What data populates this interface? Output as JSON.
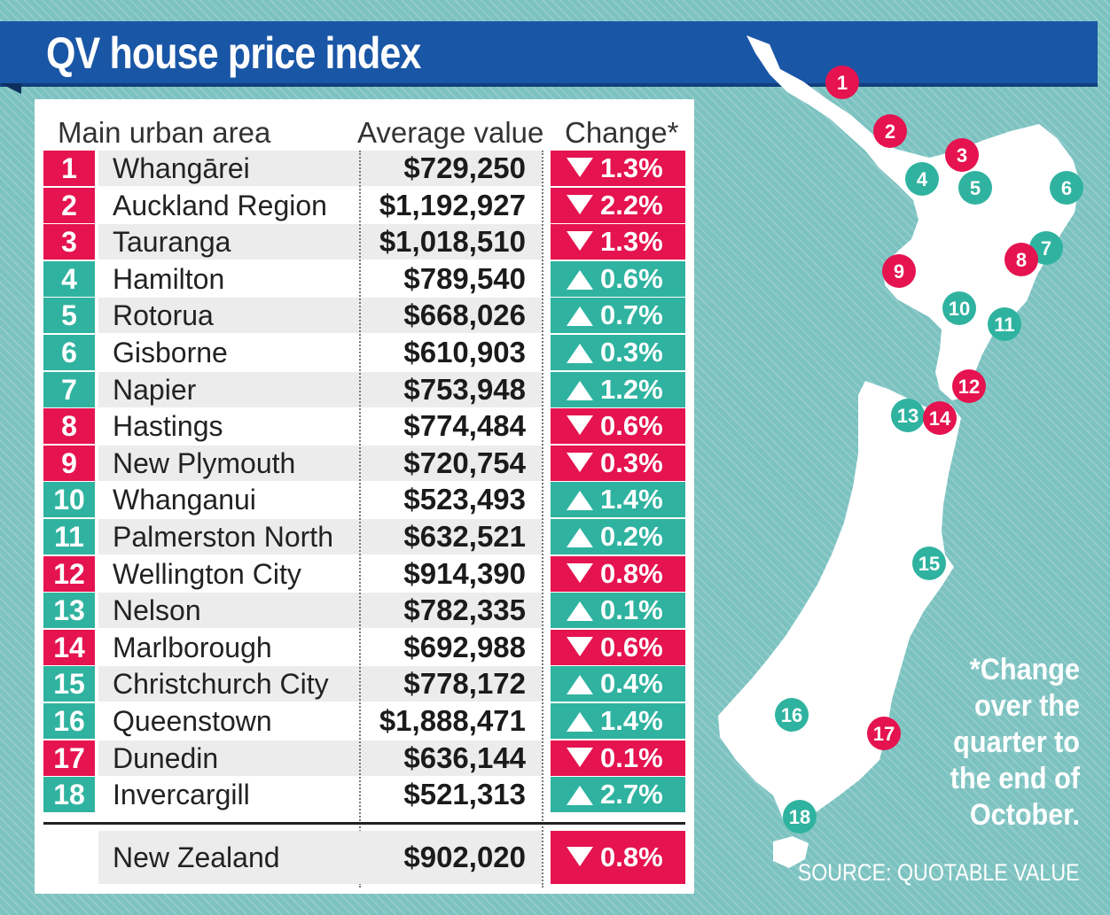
{
  "title": "QV house price index",
  "headers": {
    "area": "Main urban area",
    "value": "Average value",
    "change": "Change*"
  },
  "colors": {
    "down": "#e5134f",
    "up": "#2fb3a0",
    "title_bar": "#1a56a6"
  },
  "chart_data": {
    "type": "table",
    "title": "QV house price index",
    "columns": [
      "#",
      "Main urban area",
      "Average value",
      "Change*"
    ],
    "rows": [
      {
        "n": "1",
        "name": "Whangārei",
        "value": "$729,250",
        "direction": "down",
        "change": "1.3%"
      },
      {
        "n": "2",
        "name": "Auckland Region",
        "value": "$1,192,927",
        "direction": "down",
        "change": "2.2%"
      },
      {
        "n": "3",
        "name": "Tauranga",
        "value": "$1,018,510",
        "direction": "down",
        "change": "1.3%"
      },
      {
        "n": "4",
        "name": "Hamilton",
        "value": "$789,540",
        "direction": "up",
        "change": "0.6%"
      },
      {
        "n": "5",
        "name": "Rotorua",
        "value": "$668,026",
        "direction": "up",
        "change": "0.7%"
      },
      {
        "n": "6",
        "name": "Gisborne",
        "value": "$610,903",
        "direction": "up",
        "change": "0.3%"
      },
      {
        "n": "7",
        "name": "Napier",
        "value": "$753,948",
        "direction": "up",
        "change": "1.2%"
      },
      {
        "n": "8",
        "name": "Hastings",
        "value": "$774,484",
        "direction": "down",
        "change": "0.6%"
      },
      {
        "n": "9",
        "name": "New Plymouth",
        "value": "$720,754",
        "direction": "down",
        "change": "0.3%"
      },
      {
        "n": "10",
        "name": "Whanganui",
        "value": "$523,493",
        "direction": "up",
        "change": "1.4%"
      },
      {
        "n": "11",
        "name": "Palmerston North",
        "value": "$632,521",
        "direction": "up",
        "change": "0.2%"
      },
      {
        "n": "12",
        "name": "Wellington City",
        "value": "$914,390",
        "direction": "down",
        "change": "0.8%"
      },
      {
        "n": "13",
        "name": "Nelson",
        "value": "$782,335",
        "direction": "up",
        "change": "0.1%"
      },
      {
        "n": "14",
        "name": "Marlborough",
        "value": "$692,988",
        "direction": "down",
        "change": "0.6%"
      },
      {
        "n": "15",
        "name": "Christchurch City",
        "value": "$778,172",
        "direction": "up",
        "change": "0.4%"
      },
      {
        "n": "16",
        "name": "Queenstown",
        "value": "$1,888,471",
        "direction": "up",
        "change": "1.4%"
      },
      {
        "n": "17",
        "name": "Dunedin",
        "value": "$636,144",
        "direction": "down",
        "change": "0.1%"
      },
      {
        "n": "18",
        "name": "Invercargill",
        "value": "$521,313",
        "direction": "up",
        "change": "2.7%"
      }
    ],
    "total": {
      "name": "New Zealand",
      "value": "$902,020",
      "direction": "down",
      "change": "0.8%"
    }
  },
  "footnote": "*Change over the quarter to the end of October.",
  "source": "SOURCE: QUOTABLE VALUE"
}
